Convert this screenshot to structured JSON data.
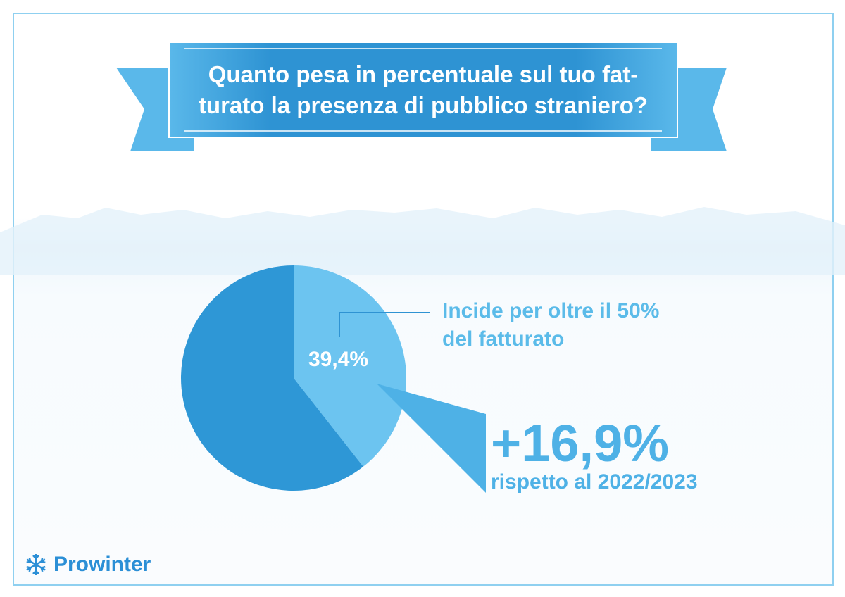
{
  "title": "Quanto pesa in percentuale sul tuo fat-turato la presenza di pubblico straniero?",
  "title_lines": [
    "Quanto pesa in percentuale sul tuo fat-",
    "turato la presenza di pubblico straniero?"
  ],
  "chart_data": {
    "type": "pie",
    "slices": [
      {
        "label": "Incide per oltre il 50% del fatturato",
        "value": 39.4,
        "color": "#6cc4f0"
      },
      {
        "label": "",
        "value": 60.6,
        "color": "#2e97d6"
      }
    ],
    "data_labels": [
      "39,4%"
    ],
    "annotation": [
      "Incide per oltre il 50%",
      "del fatturato"
    ],
    "change": {
      "value": "+16,9%",
      "text": "rispetto al 2022/2023"
    }
  },
  "logo": {
    "text": "Prowinter",
    "icon": "snowflake-icon"
  },
  "colors": {
    "banner": "#2e93d3",
    "accent": "#5bbbe9",
    "logo": "#2b8fd6"
  }
}
